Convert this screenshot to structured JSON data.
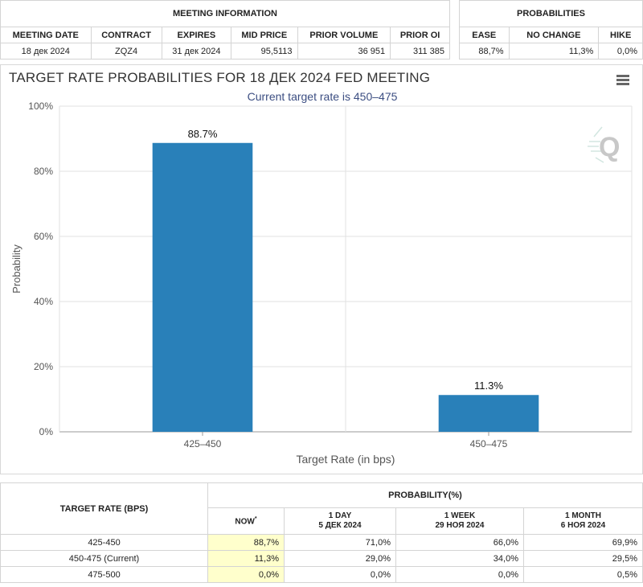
{
  "meeting_info": {
    "heading": "MEETING INFORMATION",
    "columns": [
      "MEETING DATE",
      "CONTRACT",
      "EXPIRES",
      "MID PRICE",
      "PRIOR VOLUME",
      "PRIOR OI"
    ],
    "row": [
      "18 дек 2024",
      "ZQZ4",
      "31 дек 2024",
      "95,5113",
      "36 951",
      "311 385"
    ]
  },
  "probabilities": {
    "heading": "PROBABILITIES",
    "columns": [
      "EASE",
      "NO CHANGE",
      "HIKE"
    ],
    "row": [
      "88,7%",
      "11,3%",
      "0,0%"
    ]
  },
  "chart_data": {
    "type": "bar",
    "title": "TARGET RATE PROBABILITIES FOR 18 ДЕК 2024 FED MEETING",
    "subtitle": "Current target rate is 450–475",
    "categories": [
      "425–450",
      "450–475"
    ],
    "values": [
      88.7,
      11.3
    ],
    "data_labels": [
      "88.7%",
      "11.3%"
    ],
    "xlabel": "Target Rate (in bps)",
    "ylabel": "Probability",
    "ylim": [
      0,
      100
    ],
    "yticks": [
      0,
      20,
      40,
      60,
      80,
      100
    ],
    "ytick_labels": [
      "0%",
      "20%",
      "40%",
      "60%",
      "80%",
      "100%"
    ],
    "grid": true,
    "bar_color": "#2980b9"
  },
  "bottom_table": {
    "target_header": "TARGET RATE (BPS)",
    "prob_header": "PROBABILITY(%)",
    "now_label": "NOW",
    "now_marker": "*",
    "col_1day": {
      "label": "1 DAY",
      "date": "5 ДЕК 2024"
    },
    "col_1week": {
      "label": "1 WEEK",
      "date": "29 НОЯ 2024"
    },
    "col_1month": {
      "label": "1 MONTH",
      "date": "6 НОЯ 2024"
    },
    "rows": [
      {
        "rate": "425-450",
        "now": "88,7%",
        "day": "71,0%",
        "week": "66,0%",
        "month": "69,9%"
      },
      {
        "rate": "450-475 (Current)",
        "now": "11,3%",
        "day": "29,0%",
        "week": "34,0%",
        "month": "29,5%"
      },
      {
        "rate": "475-500",
        "now": "0,0%",
        "day": "0,0%",
        "week": "0,0%",
        "month": "0,5%"
      }
    ]
  },
  "colors": {
    "highlight": "#ffffcc",
    "subtitle": "#3c4e82",
    "bar": "#2980b9"
  },
  "icons": {
    "menu": "hamburger-menu-icon",
    "logo": "cme-q-logo-icon"
  }
}
